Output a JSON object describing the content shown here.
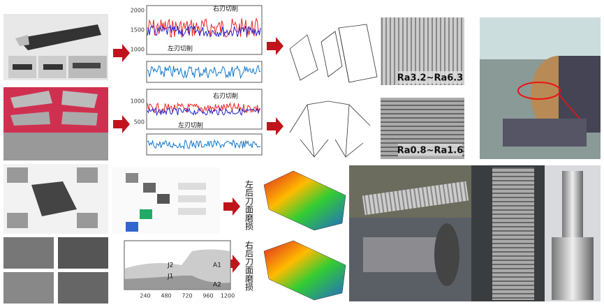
{
  "force_plot_top": {
    "yticks": [
      "2000",
      "1500",
      "1000"
    ],
    "right_label": "右刃切削",
    "left_label": "左刃切削"
  },
  "force_plot_bottom": {
    "yticks": [
      "1000",
      "500"
    ],
    "right_label": "右刃切削",
    "left_label": "左刃切削"
  },
  "roughness": {
    "coarse": "Ra3.2~Ra6.3",
    "fine": "Ra0.8~Ra1.6"
  },
  "wear": {
    "left": "左后刀面磨损",
    "right": "右后刀面磨损"
  },
  "area_plot": {
    "labels": [
      "A1",
      "A2",
      "J1",
      "J2"
    ],
    "xticks": [
      "240",
      "480",
      "720",
      "960",
      "1200"
    ]
  }
}
